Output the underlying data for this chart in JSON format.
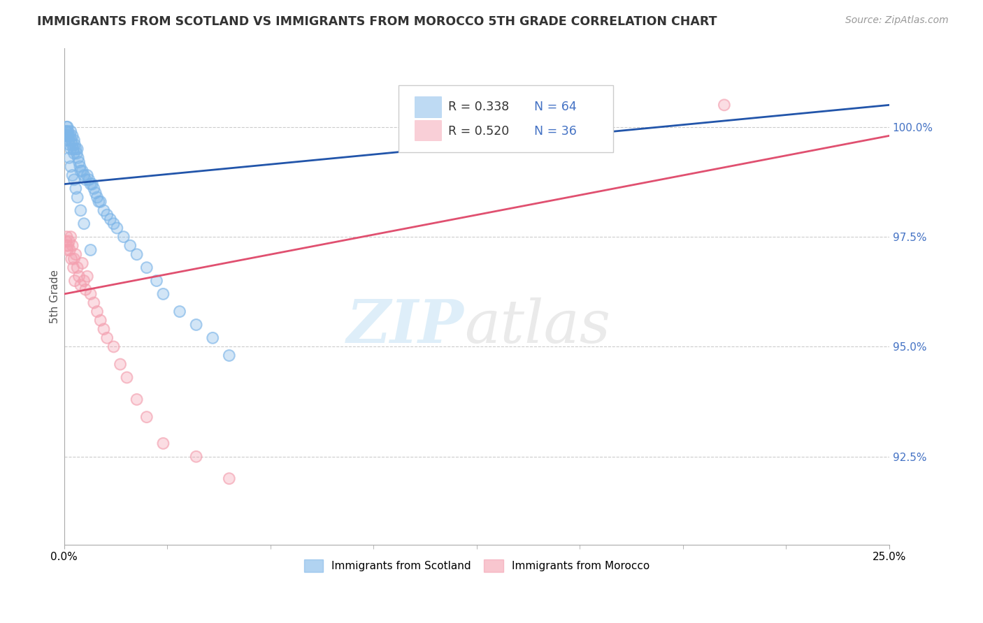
{
  "title": "IMMIGRANTS FROM SCOTLAND VS IMMIGRANTS FROM MOROCCO 5TH GRADE CORRELATION CHART",
  "source_text": "Source: ZipAtlas.com",
  "ylabel": "5th Grade",
  "xlim": [
    0.0,
    25.0
  ],
  "ylim": [
    90.5,
    101.8
  ],
  "yticks": [
    92.5,
    95.0,
    97.5,
    100.0
  ],
  "ytick_labels": [
    "92.5%",
    "95.0%",
    "97.5%",
    "100.0%"
  ],
  "scotland_color": "#7EB6E8",
  "morocco_color": "#F4A0B0",
  "scotland_line_color": "#2255AA",
  "morocco_line_color": "#E05070",
  "R_scotland": 0.338,
  "N_scotland": 64,
  "R_morocco": 0.52,
  "N_morocco": 36,
  "scotland_x": [
    0.05,
    0.05,
    0.05,
    0.07,
    0.08,
    0.1,
    0.1,
    0.12,
    0.13,
    0.15,
    0.15,
    0.18,
    0.2,
    0.2,
    0.22,
    0.25,
    0.25,
    0.28,
    0.3,
    0.3,
    0.32,
    0.35,
    0.38,
    0.4,
    0.42,
    0.45,
    0.48,
    0.5,
    0.55,
    0.6,
    0.65,
    0.7,
    0.75,
    0.8,
    0.85,
    0.9,
    0.95,
    1.0,
    1.05,
    1.1,
    1.2,
    1.3,
    1.4,
    1.5,
    1.6,
    1.8,
    2.0,
    2.2,
    2.5,
    2.8,
    3.0,
    3.5,
    4.0,
    4.5,
    5.0,
    0.15,
    0.2,
    0.25,
    0.3,
    0.35,
    0.4,
    0.5,
    0.6,
    0.8
  ],
  "scotland_y": [
    99.8,
    99.7,
    99.9,
    99.9,
    100.0,
    100.0,
    99.8,
    99.9,
    99.8,
    99.7,
    99.6,
    99.8,
    99.5,
    99.9,
    99.7,
    99.6,
    99.8,
    99.5,
    99.4,
    99.7,
    99.6,
    99.5,
    99.4,
    99.5,
    99.3,
    99.2,
    99.1,
    99.0,
    99.0,
    98.9,
    98.8,
    98.9,
    98.8,
    98.7,
    98.7,
    98.6,
    98.5,
    98.4,
    98.3,
    98.3,
    98.1,
    98.0,
    97.9,
    97.8,
    97.7,
    97.5,
    97.3,
    97.1,
    96.8,
    96.5,
    96.2,
    95.8,
    95.5,
    95.2,
    94.8,
    99.3,
    99.1,
    98.9,
    98.8,
    98.6,
    98.4,
    98.1,
    97.8,
    97.2
  ],
  "morocco_x": [
    0.05,
    0.07,
    0.08,
    0.1,
    0.12,
    0.15,
    0.17,
    0.2,
    0.22,
    0.25,
    0.28,
    0.3,
    0.32,
    0.35,
    0.4,
    0.45,
    0.5,
    0.55,
    0.6,
    0.65,
    0.7,
    0.8,
    0.9,
    1.0,
    1.1,
    1.2,
    1.3,
    1.5,
    1.7,
    1.9,
    2.2,
    2.5,
    3.0,
    4.0,
    5.0,
    20.0
  ],
  "morocco_y": [
    97.4,
    97.3,
    97.5,
    97.2,
    97.3,
    97.4,
    97.2,
    97.5,
    97.0,
    97.3,
    96.8,
    97.0,
    96.5,
    97.1,
    96.8,
    96.6,
    96.4,
    96.9,
    96.5,
    96.3,
    96.6,
    96.2,
    96.0,
    95.8,
    95.6,
    95.4,
    95.2,
    95.0,
    94.6,
    94.3,
    93.8,
    93.4,
    92.8,
    92.5,
    92.0,
    100.5
  ],
  "sc_trend_x0": 0.0,
  "sc_trend_y0": 98.7,
  "sc_trend_x1": 25.0,
  "sc_trend_y1": 100.5,
  "mo_trend_x0": 0.0,
  "mo_trend_y0": 96.2,
  "mo_trend_x1": 25.0,
  "mo_trend_y1": 99.8
}
